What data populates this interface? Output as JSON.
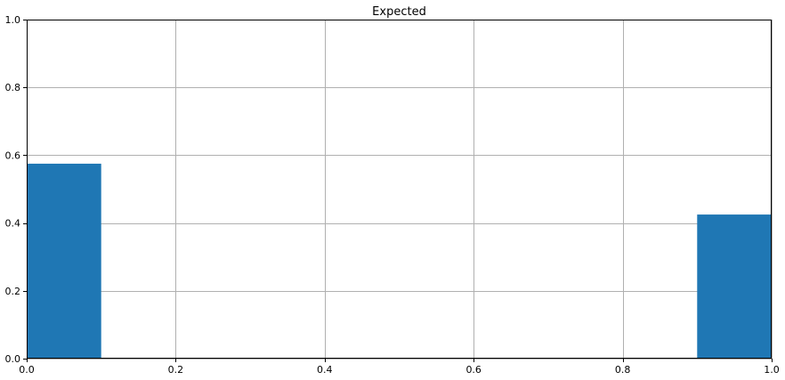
{
  "chart_data": {
    "type": "bar",
    "title": "Expected",
    "xlabel": "",
    "ylabel": "",
    "xlim": [
      0,
      1
    ],
    "ylim": [
      0,
      1
    ],
    "x_ticks": [
      0.0,
      0.2,
      0.4,
      0.6,
      0.8,
      1.0
    ],
    "x_tick_labels": [
      "0.0",
      "0.2",
      "0.4",
      "0.6",
      "0.8",
      "1.0"
    ],
    "y_ticks": [
      0.0,
      0.2,
      0.4,
      0.6,
      0.8,
      1.0
    ],
    "y_tick_labels": [
      "0.0",
      "0.2",
      "0.4",
      "0.6",
      "0.8",
      "1.0"
    ],
    "grid": true,
    "bars": [
      {
        "x_start": 0.0,
        "x_end": 0.1,
        "value": 0.575
      },
      {
        "x_start": 0.9,
        "x_end": 1.0,
        "value": 0.425
      }
    ],
    "colors": {
      "bar": "#1f77b4",
      "grid": "#b0b0b0",
      "axis": "#000000"
    }
  }
}
